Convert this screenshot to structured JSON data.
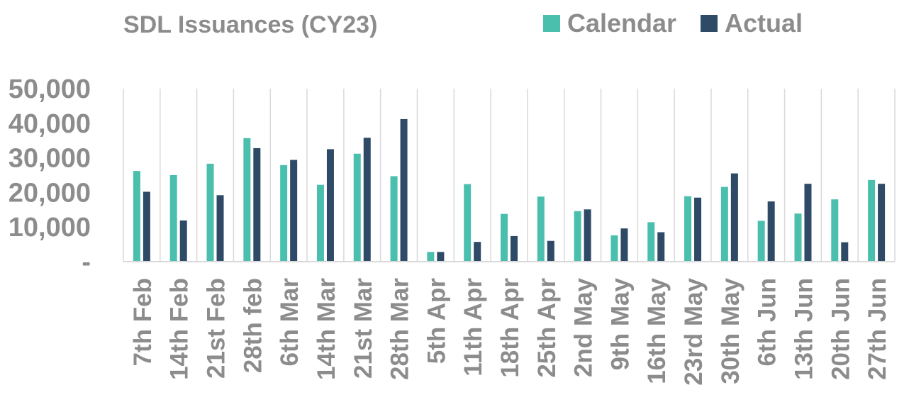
{
  "colors": {
    "calendar": "#4bbfad",
    "actual": "#2e4a66",
    "text": "#8c8c8c",
    "grid": "#d9d9d9"
  },
  "chart_data": {
    "type": "bar",
    "title": "SDL Issuances (CY23)",
    "legend_position": "top-right",
    "grid": "vertical separators",
    "categories": [
      "7th Feb",
      "14th Feb",
      "21st Feb",
      "28th feb",
      "6th Mar",
      "14th Mar",
      "21st Mar",
      "28th Mar",
      "5th Apr",
      "11th Apr",
      "18th Apr",
      "25th Apr",
      "2nd May",
      "9th May",
      "16th May",
      "23rd May",
      "30th May",
      "6th Jun",
      "13th Jun",
      "20th Jun",
      "27th Jun"
    ],
    "ylim": [
      0,
      50000
    ],
    "yticks": [
      "-",
      "10,000",
      "20,000",
      "30,000",
      "40,000",
      "50,000"
    ],
    "series": [
      {
        "name": "Calendar",
        "values": [
          26200,
          25000,
          28300,
          35700,
          27900,
          22200,
          31200,
          24700,
          2800,
          22400,
          13800,
          18800,
          14600,
          7600,
          11400,
          18900,
          21600,
          11800,
          13900,
          18000,
          23600
        ]
      },
      {
        "name": "Actual",
        "values": [
          20200,
          11900,
          19200,
          32800,
          29400,
          32500,
          35800,
          41200,
          2800,
          5700,
          7400,
          6000,
          15100,
          9600,
          8500,
          18500,
          25500,
          17400,
          22500,
          5600,
          22500
        ]
      }
    ]
  }
}
